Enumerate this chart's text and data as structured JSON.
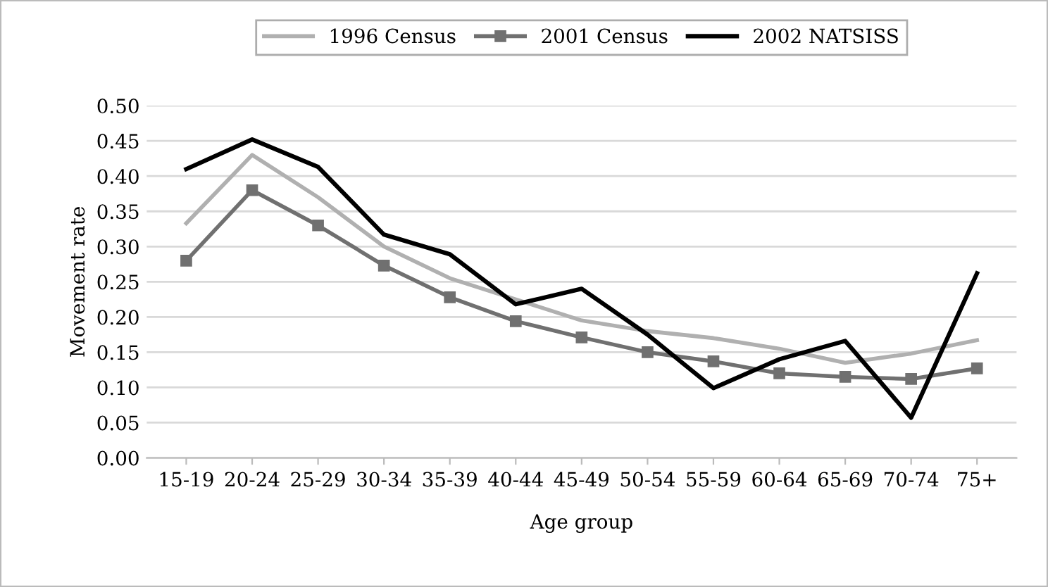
{
  "chart_data": {
    "type": "line",
    "xlabel": "Age group",
    "ylabel": "Movement rate",
    "categories": [
      "15-19",
      "20-24",
      "25-29",
      "30-34",
      "35-39",
      "40-44",
      "45-49",
      "50-54",
      "55-59",
      "60-64",
      "65-69",
      "70-74",
      "75+"
    ],
    "series": [
      {
        "name": "1996 Census",
        "color": "#b0b0b0",
        "marker": "none",
        "values": [
          0.333,
          0.43,
          0.37,
          0.3,
          0.255,
          0.225,
          0.195,
          0.18,
          0.17,
          0.155,
          0.135,
          0.148,
          0.167
        ]
      },
      {
        "name": "2001 Census",
        "color": "#707070",
        "marker": "square",
        "values": [
          0.28,
          0.38,
          0.33,
          0.273,
          0.228,
          0.194,
          0.171,
          0.15,
          0.137,
          0.12,
          0.115,
          0.112,
          0.127
        ]
      },
      {
        "name": "2002 NATSISS",
        "color": "#000000",
        "marker": "none",
        "values": [
          0.41,
          0.452,
          0.413,
          0.317,
          0.289,
          0.218,
          0.24,
          0.175,
          0.099,
          0.14,
          0.166,
          0.057,
          0.262
        ]
      }
    ],
    "ylim": [
      0,
      0.5
    ],
    "yticks": [
      {
        "value": 0,
        "label": "0.00"
      },
      {
        "value": 0.05,
        "label": "0.05"
      },
      {
        "value": 0.1,
        "label": "0.10"
      },
      {
        "value": 0.15,
        "label": "0.15"
      },
      {
        "value": 0.2,
        "label": "0.20"
      },
      {
        "value": 0.25,
        "label": "0.25"
      },
      {
        "value": 0.3,
        "label": "0.30"
      },
      {
        "value": 0.35,
        "label": "0.35"
      },
      {
        "value": 0.4,
        "label": "0.40"
      },
      {
        "value": 0.45,
        "label": "0.45"
      },
      {
        "value": 0.5,
        "label": "0.50"
      }
    ],
    "grid": "y",
    "legend": "top",
    "line_style": "solid"
  }
}
